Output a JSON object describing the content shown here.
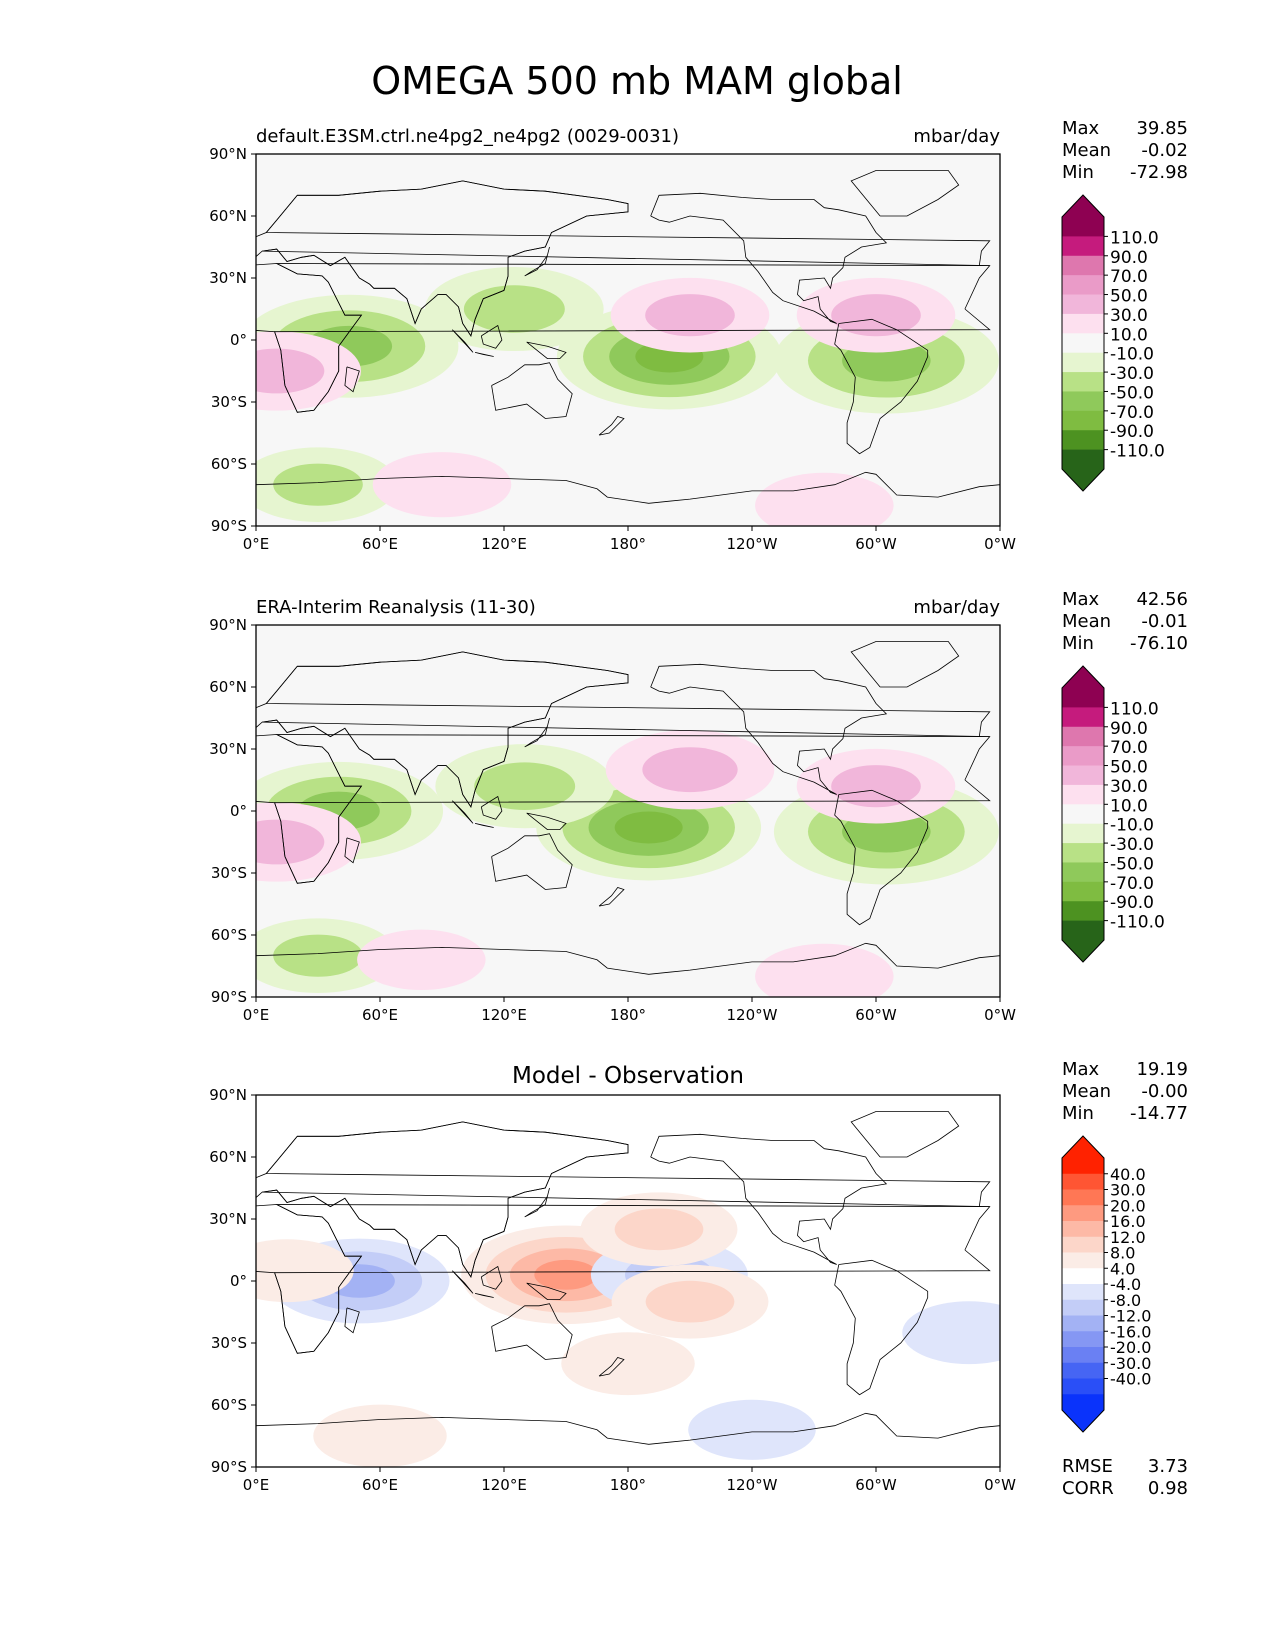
{
  "figure": {
    "title": "OMEGA 500 mb MAM global"
  },
  "axes": {
    "lat_ticks": [
      "90°N",
      "60°N",
      "30°N",
      "0°",
      "30°S",
      "60°S",
      "90°S"
    ],
    "lon_ticks": [
      "0°E",
      "60°E",
      "120°E",
      "180°",
      "120°W",
      "60°W",
      "0°W"
    ]
  },
  "chart_data": [
    {
      "type": "heatmap",
      "title": "default.E3SM.ctrl.ne4pg2_ne4pg2 (0029-0031)",
      "units": "mbar/day",
      "xlim": [
        0,
        360
      ],
      "ylim": [
        -90,
        90
      ],
      "stats": [
        {
          "label": "Max",
          "value": "39.85"
        },
        {
          "label": "Mean",
          "value": "-0.02"
        },
        {
          "label": "Min",
          "value": "-72.98"
        }
      ],
      "colorbar": {
        "labels": [
          "110.0",
          "90.0",
          "70.0",
          "50.0",
          "30.0",
          "10.0",
          "-10.0",
          "-30.0",
          "-50.0",
          "-70.0",
          "-90.0",
          "-110.0"
        ],
        "colors": [
          "#8e0152",
          "#c51b7d",
          "#de77ae",
          "#ea9bc8",
          "#f1b6da",
          "#fde0ef",
          "#f7f7f7",
          "#e6f5d0",
          "#b8e186",
          "#8fc95b",
          "#7fbc41",
          "#4d9221",
          "#276419"
        ],
        "extend": "both"
      },
      "features": [
        {
          "lon": 45,
          "lat": -3,
          "value": -60
        },
        {
          "lon": 200,
          "lat": -8,
          "value": -70
        },
        {
          "lon": 305,
          "lat": -10,
          "value": -65
        },
        {
          "lon": 125,
          "lat": 15,
          "value": -40
        },
        {
          "lon": 10,
          "lat": -15,
          "value": 35
        },
        {
          "lon": 210,
          "lat": 12,
          "value": 30
        },
        {
          "lon": 300,
          "lat": 12,
          "value": 30
        },
        {
          "lon": 30,
          "lat": -70,
          "value": -30
        },
        {
          "lon": 90,
          "lat": -70,
          "value": 20
        },
        {
          "lon": 275,
          "lat": -80,
          "value": 20
        }
      ]
    },
    {
      "type": "heatmap",
      "title": "ERA-Interim Reanalysis (11-30)",
      "units": "mbar/day",
      "xlim": [
        0,
        360
      ],
      "ylim": [
        -90,
        90
      ],
      "stats": [
        {
          "label": "Max",
          "value": "42.56"
        },
        {
          "label": "Mean",
          "value": "-0.01"
        },
        {
          "label": "Min",
          "value": "-76.10"
        }
      ],
      "colorbar": {
        "labels": [
          "110.0",
          "90.0",
          "70.0",
          "50.0",
          "30.0",
          "10.0",
          "-10.0",
          "-30.0",
          "-50.0",
          "-70.0",
          "-90.0",
          "-110.0"
        ],
        "colors": [
          "#8e0152",
          "#c51b7d",
          "#de77ae",
          "#ea9bc8",
          "#f1b6da",
          "#fde0ef",
          "#f7f7f7",
          "#e6f5d0",
          "#b8e186",
          "#8fc95b",
          "#7fbc41",
          "#4d9221",
          "#276419"
        ],
        "extend": "both"
      },
      "features": [
        {
          "lon": 40,
          "lat": 0,
          "value": -55
        },
        {
          "lon": 190,
          "lat": -8,
          "value": -75
        },
        {
          "lon": 305,
          "lat": -10,
          "value": -65
        },
        {
          "lon": 130,
          "lat": 12,
          "value": -40
        },
        {
          "lon": 10,
          "lat": -15,
          "value": 35
        },
        {
          "lon": 210,
          "lat": 20,
          "value": 35
        },
        {
          "lon": 300,
          "lat": 12,
          "value": 30
        },
        {
          "lon": 30,
          "lat": -70,
          "value": -30
        },
        {
          "lon": 80,
          "lat": -72,
          "value": 15
        },
        {
          "lon": 275,
          "lat": -80,
          "value": 20
        }
      ]
    },
    {
      "type": "heatmap",
      "title": "Model - Observation",
      "units": "",
      "xlim": [
        0,
        360
      ],
      "ylim": [
        -90,
        90
      ],
      "stats": [
        {
          "label": "Max",
          "value": "19.19"
        },
        {
          "label": "Mean",
          "value": "-0.00"
        },
        {
          "label": "Min",
          "value": "-14.77"
        }
      ],
      "colorbar": {
        "labels": [
          "40.0",
          "30.0",
          "20.0",
          "16.0",
          "12.0",
          "8.0",
          "4.0",
          "-4.0",
          "-8.0",
          "-12.0",
          "-16.0",
          "-20.0",
          "-30.0",
          "-40.0"
        ],
        "colors": [
          "#ff2200",
          "#ff5533",
          "#ff7755",
          "#fe9a80",
          "#fdb9a6",
          "#fcd6c9",
          "#fbece6",
          "#ffffff",
          "#dfe5fb",
          "#c3cdf7",
          "#a3b2f4",
          "#8597f3",
          "#6a80f3",
          "#4665f4",
          "#2a4ff7",
          "#0a33fb"
        ],
        "extend": "both"
      },
      "features": [
        {
          "lon": 50,
          "lat": 0,
          "value": -14
        },
        {
          "lon": 150,
          "lat": 3,
          "value": 19
        },
        {
          "lon": 200,
          "lat": 3,
          "value": -10
        },
        {
          "lon": 210,
          "lat": -10,
          "value": 10
        },
        {
          "lon": 195,
          "lat": 25,
          "value": 10
        },
        {
          "lon": 15,
          "lat": 5,
          "value": 6
        },
        {
          "lon": 180,
          "lat": -40,
          "value": 6
        },
        {
          "lon": 345,
          "lat": -25,
          "value": -6
        },
        {
          "lon": 60,
          "lat": -75,
          "value": 6
        },
        {
          "lon": 240,
          "lat": -72,
          "value": -5
        }
      ],
      "metrics": [
        {
          "label": "RMSE",
          "value": "3.73"
        },
        {
          "label": "CORR",
          "value": "0.98"
        }
      ]
    }
  ]
}
